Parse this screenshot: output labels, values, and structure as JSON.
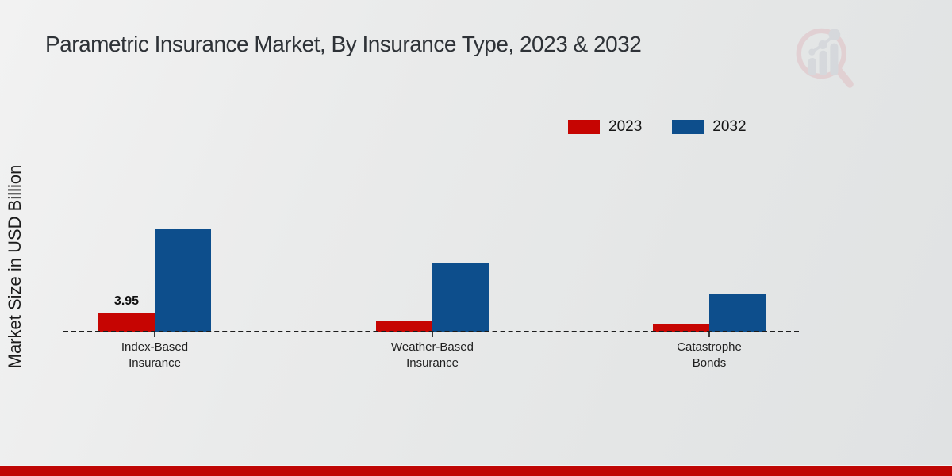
{
  "page": {
    "title": "Parametric Insurance Market, By Insurance Type, 2023 & 2032",
    "ylabel": "Market Size in USD Billion"
  },
  "colors": {
    "red": "#c60502",
    "blue": "#0d4e8c",
    "bottom_bar": "#bf0604",
    "background": "#e8e9e9",
    "title_text": "#2e3237",
    "axis_text": "#1f1f1f"
  },
  "logo": {
    "name": "magnifier-bar-chart-logo"
  },
  "chart_data": {
    "type": "bar",
    "title": "Parametric Insurance Market, By Insurance Type, 2023 & 2032",
    "xlabel": "",
    "ylabel": "Market Size in USD Billion",
    "categories": [
      "Index-Based\nInsurance",
      "Weather-Based\nInsurance",
      "Catastrophe\nBonds"
    ],
    "series": [
      {
        "name": "2023",
        "color": "#c60502",
        "values": [
          3.95,
          2.3,
          1.65
        ],
        "labels": [
          "3.95",
          null,
          null
        ]
      },
      {
        "name": "2032",
        "color": "#0d4e8c",
        "values": [
          21.2,
          14.2,
          7.7
        ],
        "labels": [
          null,
          null,
          null
        ]
      }
    ],
    "ylim": [
      0,
      24
    ],
    "grid": false,
    "axis_line_style": "dashed",
    "legend_position": "top-right",
    "value_labels_shown": [
      "3.95"
    ]
  }
}
